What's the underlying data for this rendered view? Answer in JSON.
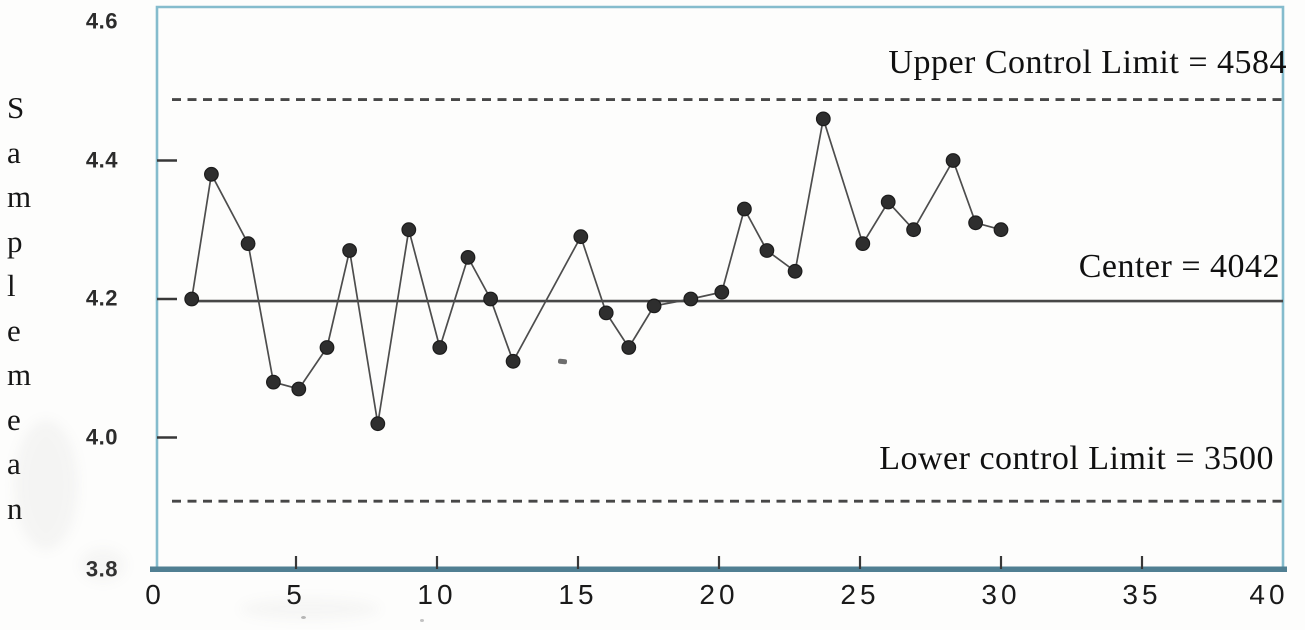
{
  "chart_data": {
    "type": "line",
    "ylabel": "Sample mean",
    "xlim": [
      0,
      40
    ],
    "ylim": [
      3.8,
      4.6
    ],
    "grid": false,
    "legend": null,
    "x_tick_labels": [
      "0",
      "5",
      "10",
      "15",
      "20",
      "25",
      "30",
      "35",
      "40"
    ],
    "x_tick_values": [
      0,
      5,
      10,
      15,
      20,
      25,
      30,
      35,
      40
    ],
    "y_tick_labels": [
      "4.6",
      "4.4",
      "4.2",
      "4.0",
      "3.8"
    ],
    "y_tick_values": [
      4.6,
      4.4,
      4.2,
      4.0,
      3.8
    ],
    "x_axis_ticks_drawn": [
      5,
      10,
      15,
      20,
      25,
      30,
      35
    ],
    "y_axis_ticks_drawn": [
      4.4,
      4.2,
      4.0
    ],
    "points": {
      "x": [
        1.3,
        2.0,
        3.3,
        4.2,
        5.1,
        6.1,
        6.9,
        7.9,
        9.0,
        10.1,
        11.1,
        11.9,
        12.7,
        15.1,
        16.0,
        16.8,
        17.7,
        19.0,
        20.1,
        20.9,
        21.7,
        22.7,
        23.7,
        25.1,
        26.0,
        26.9,
        28.3,
        29.1,
        30.0
      ],
      "y": [
        4.2,
        4.38,
        4.28,
        4.08,
        4.07,
        4.13,
        4.27,
        4.02,
        4.3,
        4.13,
        4.26,
        4.2,
        4.11,
        4.29,
        4.18,
        4.13,
        4.19,
        4.2,
        4.21,
        4.33,
        4.27,
        4.24,
        4.46,
        4.28,
        4.34,
        4.3,
        4.4,
        4.31,
        4.3
      ]
    },
    "reference_lines": [
      {
        "id": "ucl",
        "label": "Upper Control Limit = 4584",
        "value": 4584,
        "drawn_at_axis_value": 4.488,
        "style": "dashed"
      },
      {
        "id": "center",
        "label": "Center = 4042",
        "value": 4042,
        "drawn_at_axis_value": 4.197,
        "style": "solid"
      },
      {
        "id": "lcl",
        "label": "Lower control Limit = 3500",
        "value": 3500,
        "drawn_at_axis_value": 3.908,
        "style": "dashed"
      }
    ]
  },
  "colors": {
    "frame": "#85bccd",
    "frame_bottom": "#507f92",
    "tick_ink": "#383838",
    "series_line": "#4d4d4d",
    "marker_fill": "#2e2e2e",
    "marker_edge": "#1c1c1c",
    "reference_line": "#474747",
    "annotation_text": "#101010"
  }
}
